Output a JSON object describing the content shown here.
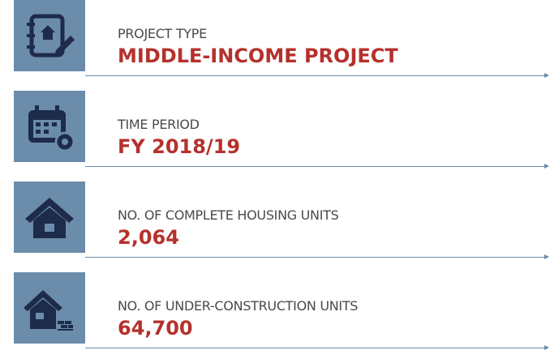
{
  "items": [
    {
      "label": "PROJECT TYPE",
      "value": "MIDDLE-INCOME PROJECT"
    },
    {
      "label": "TIME PERIOD",
      "value": "FY 2018/19"
    },
    {
      "label": "NO. OF COMPLETE HOUSING UNITS",
      "value": "2,064"
    },
    {
      "label": "NO. OF UNDER-CONSTRUCTION UNITS",
      "value": "64,700"
    }
  ]
}
